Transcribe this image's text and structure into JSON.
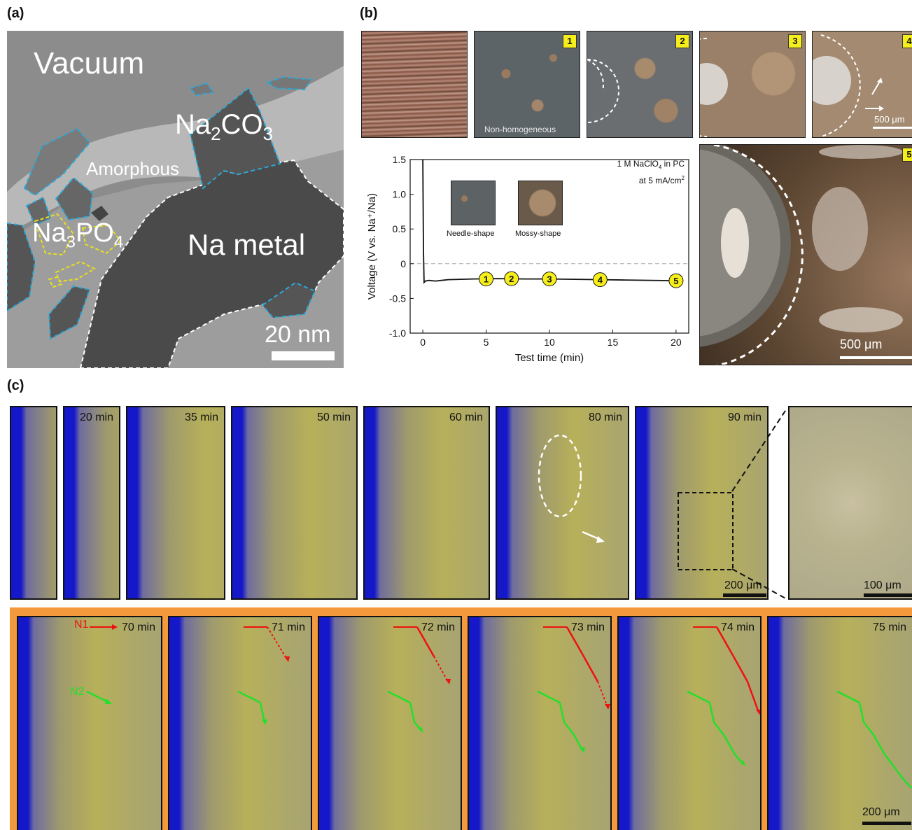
{
  "panel_labels": {
    "a": "(a)",
    "b": "(b)",
    "c": "(c)"
  },
  "panel_a": {
    "vacuum": "Vacuum",
    "na2co3": {
      "base": "Na",
      "sub1": "2",
      "mid": "CO",
      "sub2": "3"
    },
    "amorphous": "Amorphous",
    "na3po4": {
      "base": "Na",
      "sub1": "3",
      "mid": "PO",
      "sub2": "4"
    },
    "na_metal": "Na metal",
    "scale": "20 nm"
  },
  "panel_b": {
    "photos": [
      {
        "badge": "",
        "caption": ""
      },
      {
        "badge": "1",
        "caption": "Non-homogeneous"
      },
      {
        "badge": "2",
        "caption": ""
      },
      {
        "badge": "3",
        "caption": ""
      },
      {
        "badge": "4",
        "caption": "",
        "scale": "500 μm"
      }
    ],
    "big_photo": {
      "badge": "5",
      "scale": "500 μm"
    },
    "inset_labels": {
      "needle": "Needle-shape",
      "mossy": "Mossy-shape"
    },
    "condition": {
      "line1": "1 M NaClO",
      "sub": "4",
      "line1_end": " in PC",
      "line2": "at 5 mA/cm",
      "sup": "2"
    },
    "markers": [
      "1",
      "2",
      "3",
      "4",
      "5"
    ]
  },
  "chart_data": {
    "type": "line",
    "xlabel": "Test time (min)",
    "ylabel": "Voltage (V vs. Na⁺/Na)",
    "xlim": [
      -1,
      21
    ],
    "ylim": [
      -1.0,
      1.5
    ],
    "xticks": [
      0,
      5,
      10,
      15,
      20
    ],
    "yticks": [
      -1.0,
      -0.5,
      0,
      0.5,
      1.0,
      1.5
    ],
    "ytick_labels": [
      "-1.0",
      "-0.5",
      "0",
      "0.5",
      "1.0",
      "1.5"
    ],
    "reference_line": 0,
    "x": [
      0,
      0.05,
      0.1,
      0.2,
      0.5,
      1,
      2,
      4,
      6,
      8,
      10,
      12,
      14,
      16,
      18,
      20
    ],
    "y": [
      1.5,
      0.2,
      -0.27,
      -0.25,
      -0.24,
      -0.25,
      -0.23,
      -0.22,
      -0.215,
      -0.22,
      -0.22,
      -0.225,
      -0.23,
      -0.235,
      -0.24,
      -0.245
    ],
    "marker_points": [
      {
        "label": "1",
        "x": 5,
        "y": -0.22
      },
      {
        "label": "2",
        "x": 7,
        "y": -0.215
      },
      {
        "label": "3",
        "x": 10,
        "y": -0.22
      },
      {
        "label": "4",
        "x": 14,
        "y": -0.23
      },
      {
        "label": "5",
        "x": 20,
        "y": -0.245
      }
    ]
  },
  "panel_c": {
    "top_frames": [
      "",
      "20 min",
      "35 min",
      "50 min",
      "60 min",
      "80 min",
      "90 min"
    ],
    "top_scale": "200 μm",
    "zoom_scale": "100 μm",
    "bottom_frames": [
      "70 min",
      "71 min",
      "72 min",
      "73 min",
      "74 min",
      "75 min"
    ],
    "bottom_scale": "200 μm",
    "n1": "N1",
    "n2": "N2"
  }
}
